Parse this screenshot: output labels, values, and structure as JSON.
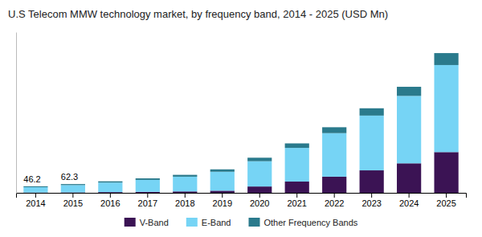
{
  "chart_data": {
    "type": "bar",
    "stacked": true,
    "title": "U.S Telecom MMW technology market, by frequency band, 2014 - 2025 (USD Mn)",
    "categories": [
      "2014",
      "2015",
      "2016",
      "2017",
      "2018",
      "2019",
      "2020",
      "2021",
      "2022",
      "2023",
      "2024",
      "2025"
    ],
    "series": [
      {
        "name": "V-Band",
        "color": "#3b1354",
        "values": [
          2,
          3,
          5,
          7,
          10,
          15,
          45,
          80,
          115,
          160,
          210,
          290
        ]
      },
      {
        "name": "E-Band",
        "color": "#76d4f5",
        "values": [
          38,
          52,
          68,
          85,
          105,
          135,
          180,
          240,
          310,
          390,
          480,
          620
        ]
      },
      {
        "name": "Other Frequency Bands",
        "color": "#2a7a8c",
        "values": [
          6.2,
          7.3,
          9,
          11,
          13,
          17,
          25,
          32,
          42,
          52,
          65,
          85
        ]
      }
    ],
    "annotations": [
      {
        "text": "46.2",
        "x": "2014",
        "y": 46.2
      },
      {
        "text": "62.3",
        "x": "2015",
        "y": 62.3
      }
    ],
    "ylim": [
      0,
      1144.25
    ],
    "tick_labels": "x",
    "grid": false,
    "legend": "bottom"
  }
}
